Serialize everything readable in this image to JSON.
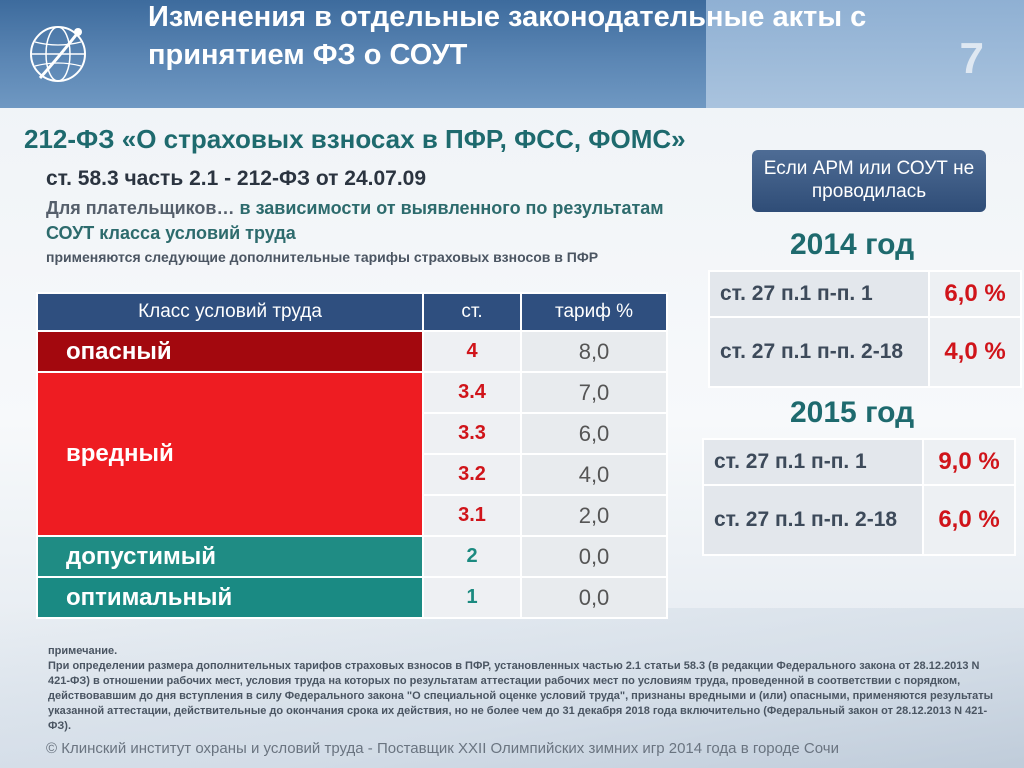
{
  "header": {
    "title": "Изменения в отдельные законодательные акты с принятием ФЗ о СОУТ",
    "slide_number": "7"
  },
  "content": {
    "subtitle": "212-ФЗ «О страховых взносах в ПФР, ФСС, ФОМС»",
    "article_ref": "ст. 58.3 часть 2.1 - 212-ФЗ от 24.07.09",
    "payers_prefix": "Для плательщиков…",
    "payers_text": " в зависимости от выявленного по результатам СОУТ класса условий труда",
    "applied_text": "применяются следующие дополнительные тарифы страховых взносов в ПФР"
  },
  "table": {
    "headers": [
      "Класс условий труда",
      "ст.",
      "тариф %"
    ],
    "classes": {
      "danger": "опасный",
      "harmful": "вредный",
      "acceptable": "допустимый",
      "optimal": "оптимальный"
    },
    "rows": [
      {
        "st": "4",
        "tariff": "8,0"
      },
      {
        "st": "3.4",
        "tariff": "7,0"
      },
      {
        "st": "3.3",
        "tariff": "6,0"
      },
      {
        "st": "3.2",
        "tariff": "4,0"
      },
      {
        "st": "3.1",
        "tariff": "2,0"
      },
      {
        "st": "2",
        "tariff": "0,0"
      },
      {
        "st": "1",
        "tariff": "0,0"
      }
    ]
  },
  "side": {
    "note": "Если АРМ или СОУТ не проводилась",
    "year2014": {
      "title": "2014 год",
      "rows": [
        {
          "label": "ст. 27 п.1 п-п. 1",
          "value": "6,0 %"
        },
        {
          "label": "ст. 27 п.1 п-п. 2-18",
          "value": "4,0 %"
        }
      ]
    },
    "year2015": {
      "title": "2015 год",
      "rows": [
        {
          "label": "ст. 27 п.1 п-п. 1",
          "value": "9,0 %"
        },
        {
          "label": "ст. 27 п.1 п-п. 2-18",
          "value": "6,0 %"
        }
      ]
    }
  },
  "notes": {
    "heading": "примечание.",
    "text": "При определении размера дополнительных тарифов страховых взносов в ПФР, установленных частью 2.1 статьи 58.3 (в редакции Федерального закона от 28.12.2013 N 421-ФЗ) в отношении рабочих мест, условия труда на которых по результатам аттестации рабочих мест по условиям труда, проведенной в соответствии с порядком, действовавшим до дня вступления в силу Федерального закона \"О специальной оценке условий труда\", признаны вредными и (или) опасными, применяются результаты указанной аттестации, действительные до окончания срока их действия, но не более чем до 31 декабря 2018 года включительно (Федеральный закон от 28.12.2013 N 421-ФЗ)."
  },
  "footer": "© Клинский институт охраны и условий труда - Поставщик XXII Олимпийских зимних игр 2014 года в городе Сочи"
}
